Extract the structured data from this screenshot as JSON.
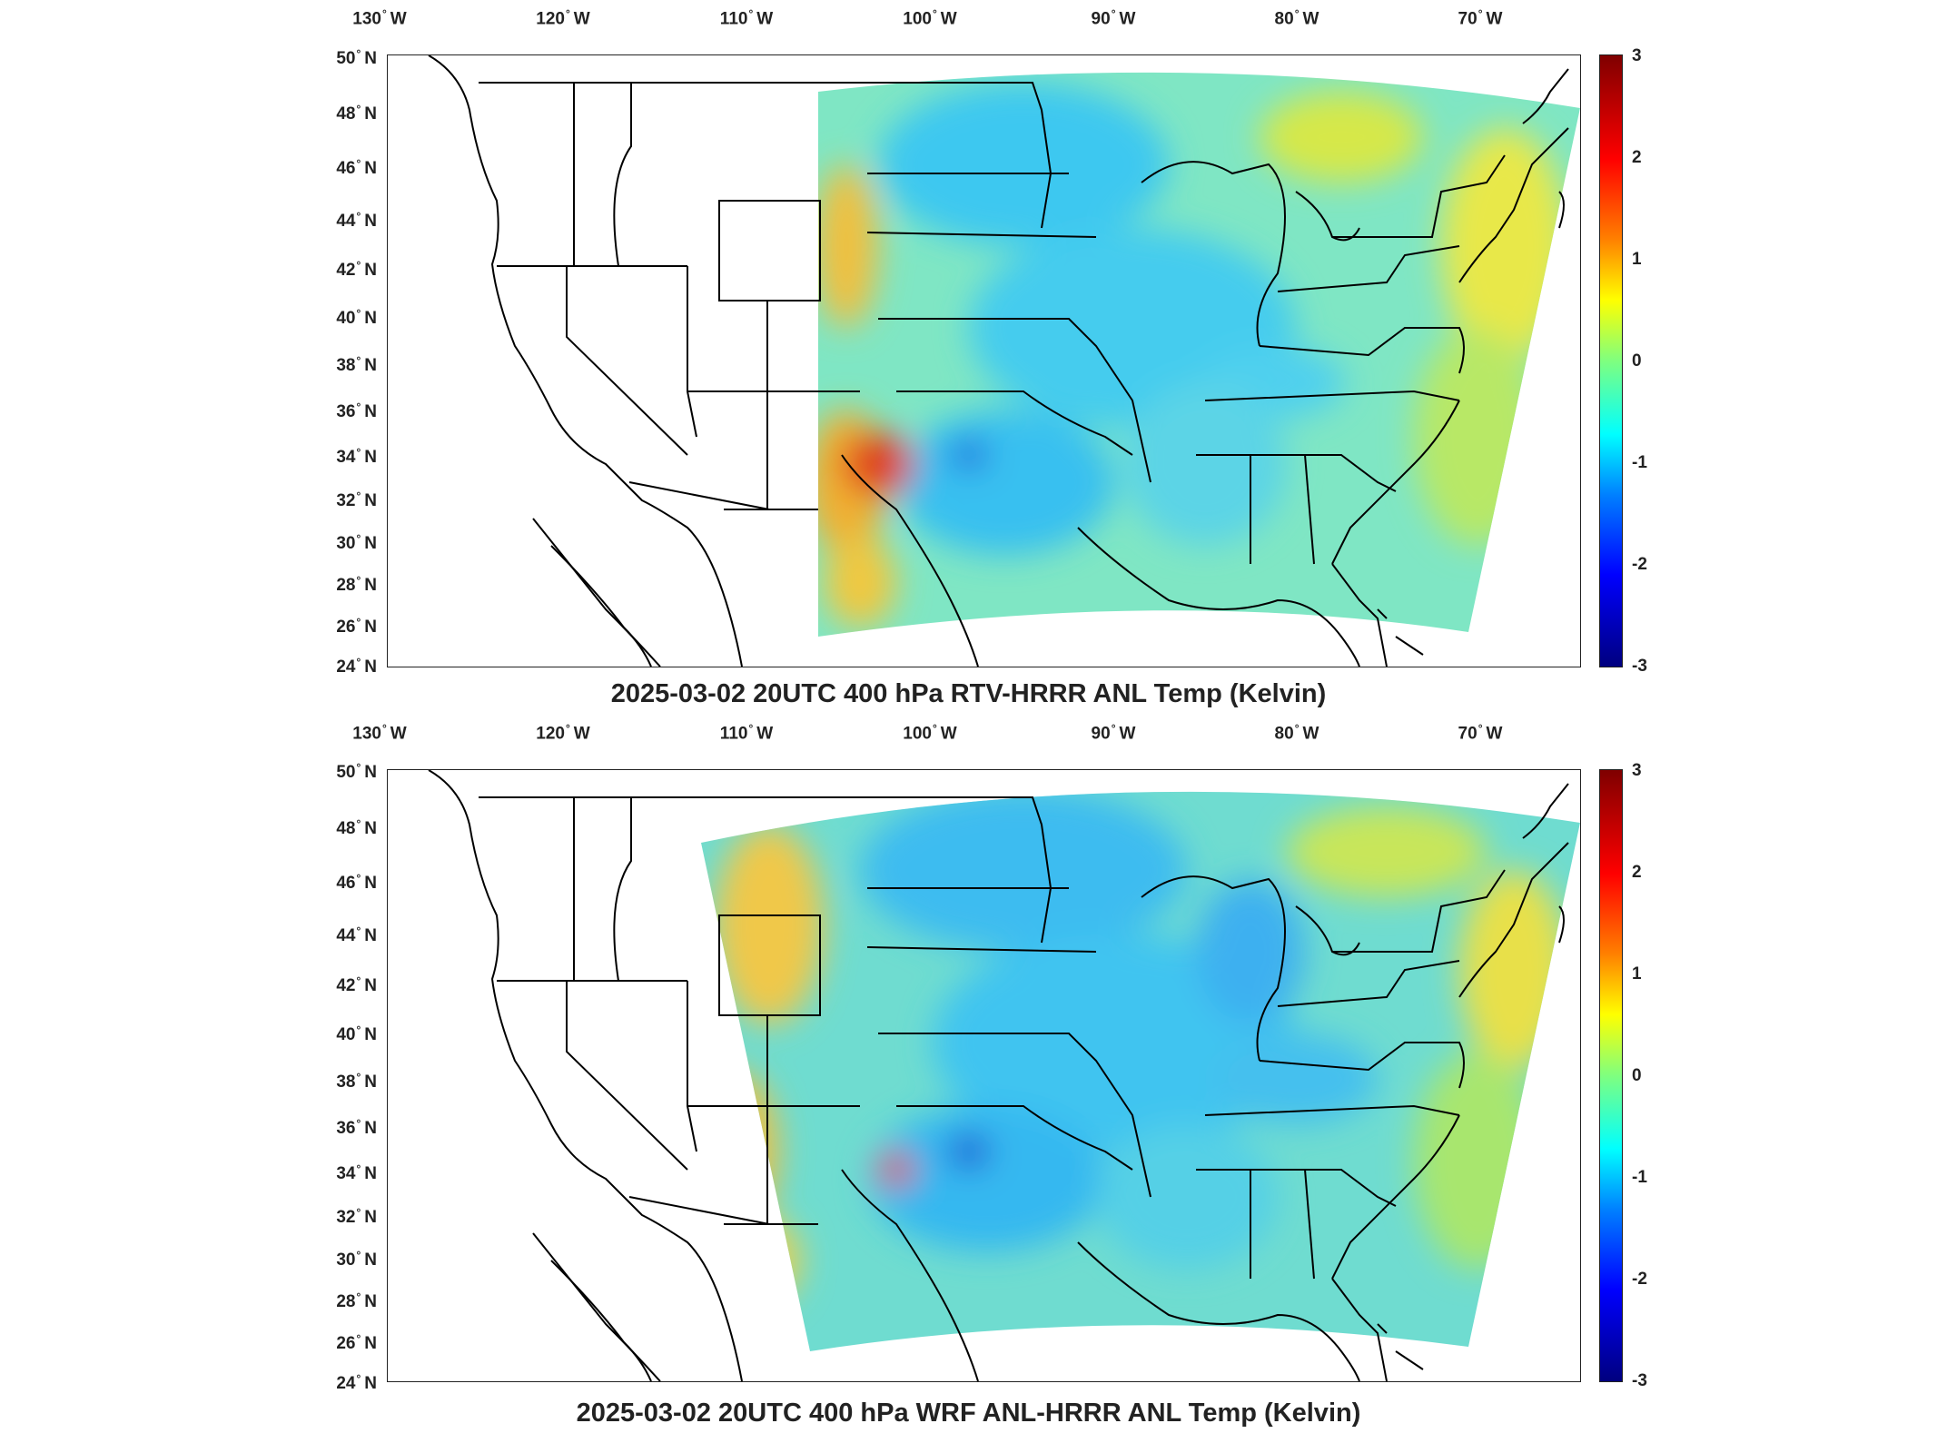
{
  "panels": [
    {
      "title": "2025-03-02 20UTC 400 hPa RTV-HRRR ANL Temp (Kelvin)",
      "lon_labels": [
        "130",
        "120",
        "110",
        "100",
        "90",
        "80",
        "70"
      ],
      "lon_suffix": "W",
      "lat_labels": [
        "50",
        "48",
        "46",
        "44",
        "42",
        "40",
        "38",
        "36",
        "34",
        "32",
        "30",
        "28",
        "26",
        "24"
      ],
      "lat_suffix": "N",
      "colorbar_ticks": [
        "3",
        "2",
        "1",
        "0",
        "-1",
        "-2",
        "-3"
      ]
    },
    {
      "title": "2025-03-02 20UTC 400 hPa WRF ANL-HRRR ANL Temp (Kelvin)",
      "lon_labels": [
        "130",
        "120",
        "110",
        "100",
        "90",
        "80",
        "70"
      ],
      "lon_suffix": "W",
      "lat_labels": [
        "50",
        "48",
        "46",
        "44",
        "42",
        "40",
        "38",
        "36",
        "34",
        "32",
        "30",
        "28",
        "26",
        "24"
      ],
      "lat_suffix": "N",
      "colorbar_ticks": [
        "3",
        "2",
        "1",
        "0",
        "-1",
        "-2",
        "-3"
      ]
    }
  ],
  "colormap": "jet",
  "colorbar_range": [
    -3,
    3
  ],
  "field_colors": {
    "warm": "#ffd21a",
    "hot": "#e0201a",
    "cool": "#3dc8f0",
    "cold": "#1f4fd8",
    "base": "#7fe0c8"
  }
}
